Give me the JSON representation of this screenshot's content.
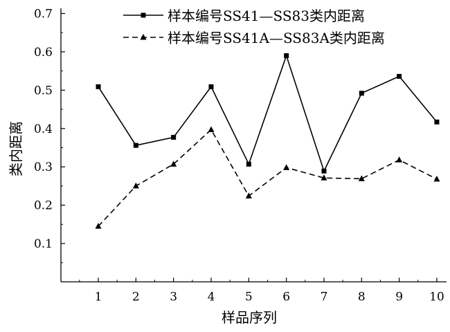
{
  "chart_data": {
    "type": "line",
    "title": "",
    "xlabel": "样品序列",
    "ylabel": "类内距离",
    "x": [
      1,
      2,
      3,
      4,
      5,
      6,
      7,
      8,
      9,
      10
    ],
    "xticks": [
      "1",
      "2",
      "3",
      "4",
      "5",
      "6",
      "7",
      "8",
      "9",
      "10"
    ],
    "yticks": [
      "0.1",
      "0.2",
      "0.3",
      "0.4",
      "0.5",
      "0.6",
      "0.7"
    ],
    "ylim": [
      0,
      0.7
    ],
    "xlim": [
      0,
      10.3
    ],
    "grid": false,
    "legend_position": "top-center",
    "series": [
      {
        "name": "样本编号SS41—SS83类内距离",
        "style": "solid",
        "marker": "square",
        "values": [
          0.509,
          0.356,
          0.377,
          0.509,
          0.307,
          0.59,
          0.289,
          0.492,
          0.536,
          0.417
        ]
      },
      {
        "name": "样本编号SS41A—SS83A类内距离",
        "style": "dashed",
        "marker": "triangle",
        "values": [
          0.145,
          0.25,
          0.307,
          0.397,
          0.224,
          0.298,
          0.271,
          0.269,
          0.318,
          0.268
        ]
      }
    ]
  }
}
